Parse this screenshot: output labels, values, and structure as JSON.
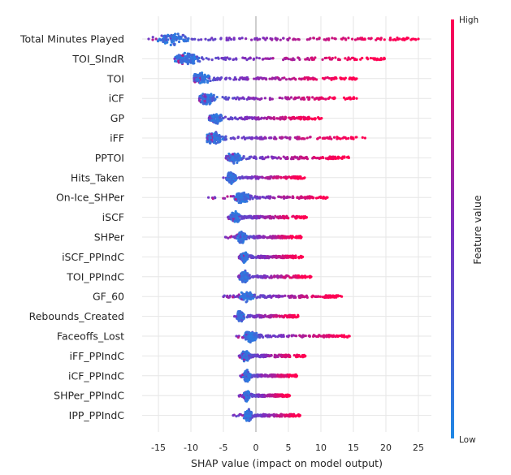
{
  "chart_data": {
    "type": "scatter",
    "subtype": "shap-beeswarm",
    "xlabel": "SHAP value (impact on model output)",
    "xlim": [
      -17.5,
      27
    ],
    "xticks": [
      -15,
      -10,
      -5,
      0,
      5,
      10,
      15,
      20,
      25
    ],
    "grid": true,
    "colorbar": {
      "label": "Feature value",
      "high": "High",
      "low": "Low",
      "low_color": "#1e88e5",
      "mid_color": "#7b2ec0",
      "high_color": "#ff0052"
    },
    "features": [
      {
        "name": "Total Minutes Played",
        "min": -16.5,
        "max": 25.0,
        "peak": -12.7
      },
      {
        "name": "TOI_SIndR",
        "min": -12.5,
        "max": 19.8,
        "peak": -10.6
      },
      {
        "name": "TOI",
        "min": -9.5,
        "max": 15.5,
        "peak": -8.5
      },
      {
        "name": "iCF",
        "min": -8.7,
        "max": 15.5,
        "peak": -7.5
      },
      {
        "name": "GP",
        "min": -7.2,
        "max": 10.1,
        "peak": -6.2
      },
      {
        "name": "iFF",
        "min": -7.5,
        "max": 16.8,
        "peak": -6.5
      },
      {
        "name": "PPTOI",
        "min": -4.6,
        "max": 14.3,
        "peak": -3.3
      },
      {
        "name": "Hits_Taken",
        "min": -5.0,
        "max": 7.5,
        "peak": -3.8
      },
      {
        "name": "On-Ice_SHPer",
        "min": -7.3,
        "max": 11.0,
        "peak": -2.2
      },
      {
        "name": "iSCF",
        "min": -4.3,
        "max": 7.8,
        "peak": -3.2
      },
      {
        "name": "SHPer",
        "min": -4.7,
        "max": 7.0,
        "peak": -2.2
      },
      {
        "name": "iSCF_PPIndC",
        "min": -2.6,
        "max": 7.2,
        "peak": -1.8
      },
      {
        "name": "TOI_PPIndC",
        "min": -2.7,
        "max": 8.5,
        "peak": -1.8
      },
      {
        "name": "GF_60",
        "min": -5.0,
        "max": 13.2,
        "peak": -1.4
      },
      {
        "name": "Rebounds_Created",
        "min": -3.3,
        "max": 6.5,
        "peak": -2.4
      },
      {
        "name": "Faceoffs_Lost",
        "min": -3.0,
        "max": 14.4,
        "peak": -0.9
      },
      {
        "name": "iFF_PPIndC",
        "min": -2.6,
        "max": 7.6,
        "peak": -1.6
      },
      {
        "name": "iCF_PPIndC",
        "min": -2.4,
        "max": 6.3,
        "peak": -1.4
      },
      {
        "name": "SHPer_PPIndC",
        "min": -2.6,
        "max": 5.2,
        "peak": -1.4
      },
      {
        "name": "IPP_PPIndC",
        "min": -3.5,
        "max": 6.8,
        "peak": -1.2
      }
    ]
  }
}
